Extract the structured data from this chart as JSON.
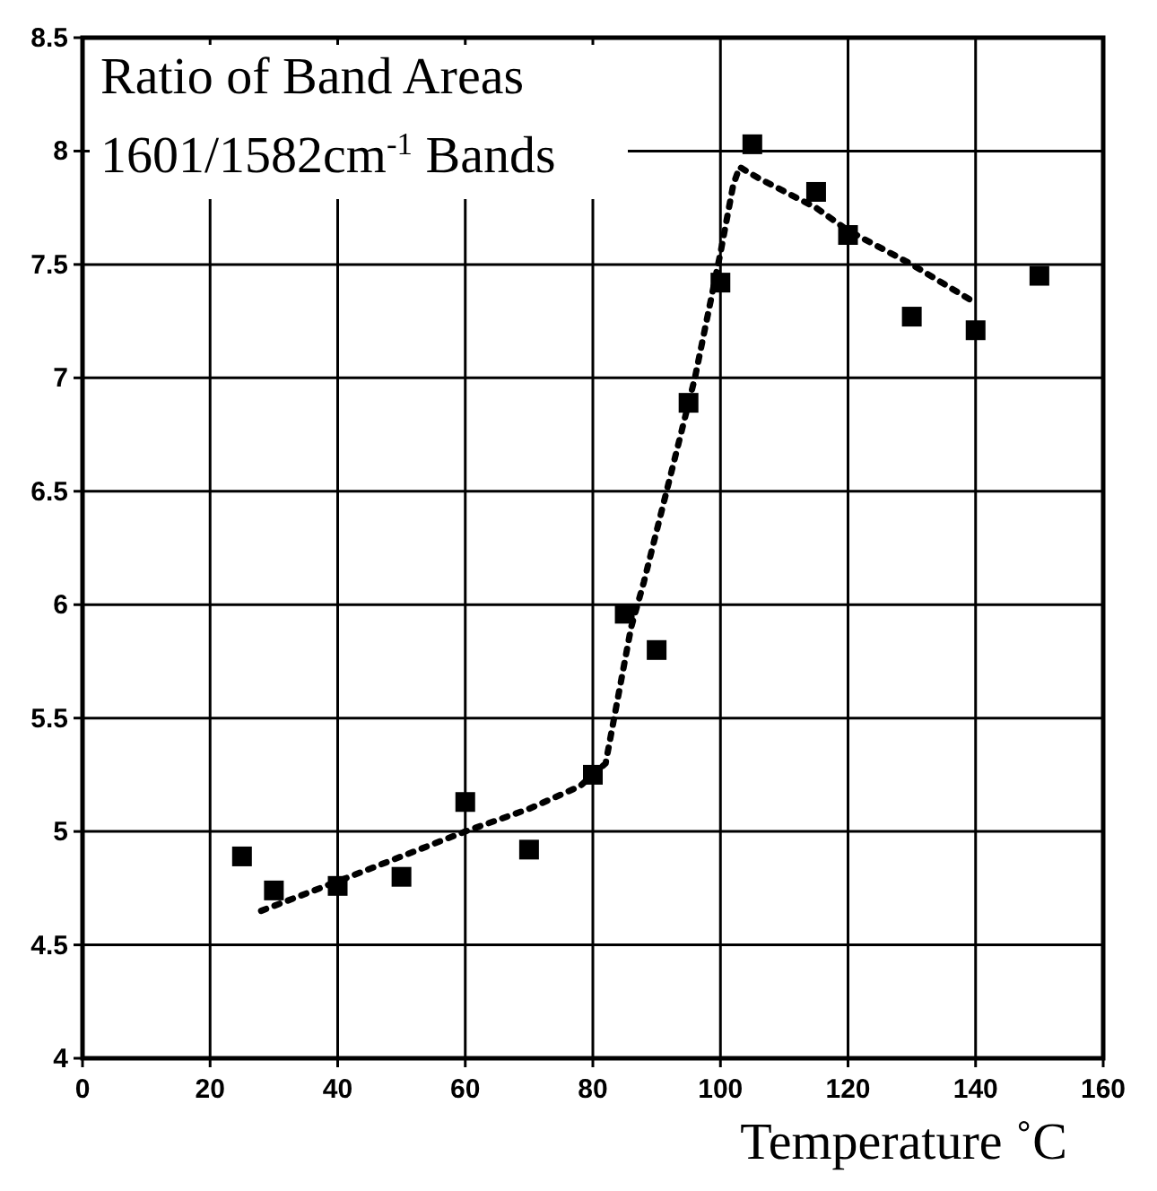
{
  "chart_data": {
    "type": "scatter",
    "title": "Ratio of Band Areas",
    "subtitle": "1601/1582cm$^{-1}$ Bands",
    "xlabel": "Temperature ˚C",
    "xlim": [
      0,
      160
    ],
    "xticks": [
      0,
      20,
      40,
      60,
      80,
      100,
      120,
      140,
      160
    ],
    "ylim": [
      4,
      8.5
    ],
    "yticks": [
      4,
      4.5,
      5,
      5.5,
      6,
      6.5,
      7,
      7.5,
      8,
      8.5
    ],
    "grid": true,
    "marker": "square",
    "series": [
      {
        "color": "#000000",
        "x": [
          25,
          30,
          40,
          50,
          60,
          70,
          80,
          85,
          90,
          95,
          100,
          105,
          115,
          120,
          130,
          140,
          150
        ],
        "values": [
          4.89,
          4.74,
          4.76,
          4.8,
          5.13,
          4.92,
          5.25,
          5.96,
          5.8,
          6.89,
          7.42,
          8.03,
          7.82,
          7.63,
          7.27,
          7.21,
          7.45
        ]
      },
      {
        "type": "line",
        "color": "#000000",
        "marker": "none",
        "line_style": "dotted",
        "x": [
          28,
          40,
          50,
          60,
          70,
          78,
          82,
          84,
          86,
          88,
          92,
          96,
          100,
          102,
          103,
          106,
          115,
          120,
          130,
          140
        ],
        "values": [
          4.65,
          4.78,
          4.89,
          5.0,
          5.1,
          5.2,
          5.3,
          5.6,
          5.9,
          6.1,
          6.55,
          7.0,
          7.55,
          7.85,
          7.93,
          7.88,
          7.75,
          7.65,
          7.5,
          7.33
        ]
      }
    ]
  }
}
